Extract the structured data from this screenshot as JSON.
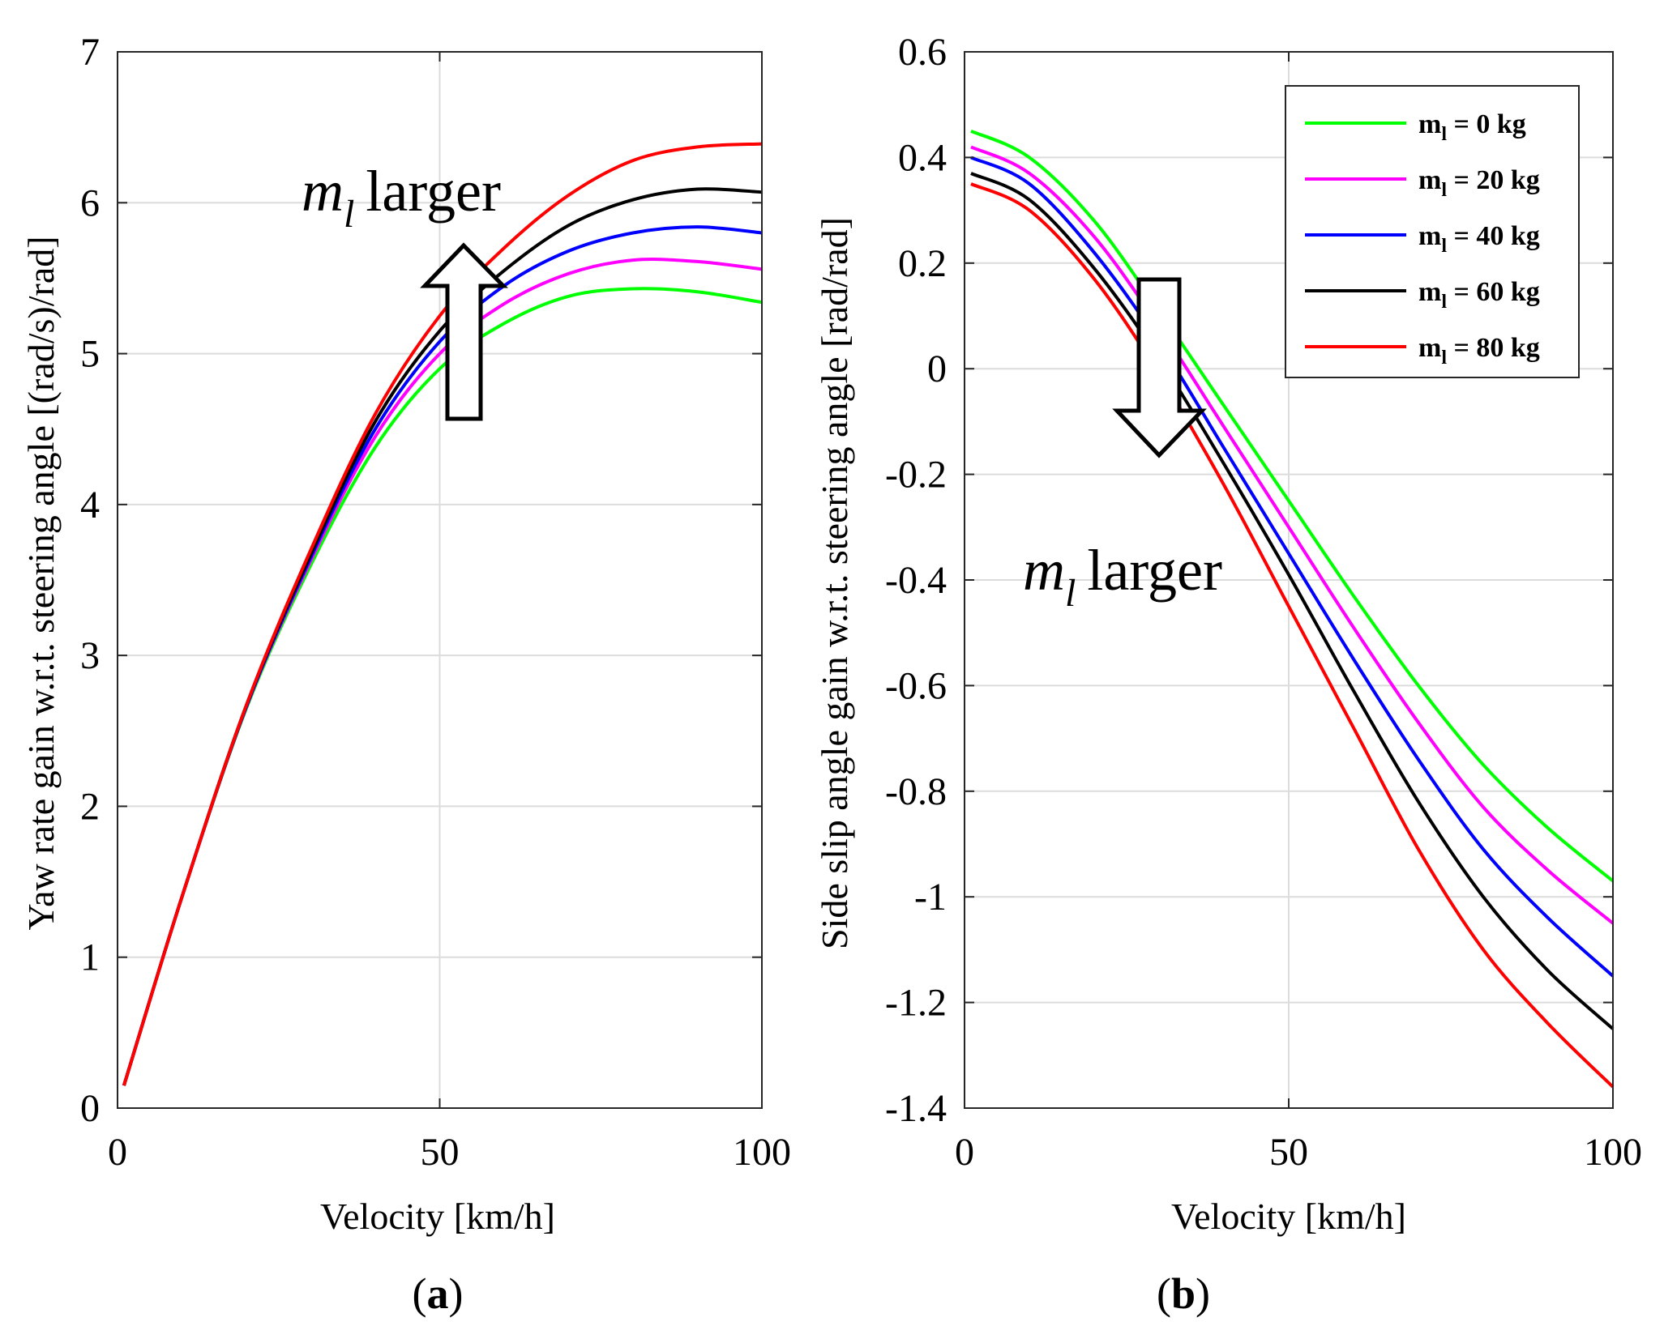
{
  "figure": {
    "panel_a_label": "a",
    "panel_b_label": "b"
  },
  "colors": {
    "m_0": "#00ff00",
    "m_20": "#ff00ff",
    "m_40": "#0000ff",
    "m_60": "#000000",
    "m_80": "#ff0000",
    "grid": "#dcdcdc",
    "axis": "#262626"
  },
  "chart_data": [
    {
      "type": "line",
      "panel": "a",
      "xlabel": "Velocity [km/h]",
      "ylabel": "Yaw rate gain w.r.t. steering angle [(rad/s)/rad]",
      "xlim": [
        0,
        100
      ],
      "ylim": [
        0,
        7
      ],
      "xticks": [
        0,
        50,
        100
      ],
      "yticks": [
        0,
        1,
        2,
        3,
        4,
        5,
        6,
        7
      ],
      "grid": true,
      "annotation": {
        "symbol": "m",
        "subscript": "l",
        "text": "larger",
        "arrow": "up"
      },
      "x": [
        1,
        10,
        20,
        30,
        40,
        50,
        60,
        70,
        80,
        90,
        100
      ],
      "series": [
        {
          "name": "m_l = 0 kg",
          "color_key": "m_0",
          "values": [
            0.15,
            1.4,
            2.65,
            3.6,
            4.38,
            4.9,
            5.2,
            5.38,
            5.43,
            5.41,
            5.34
          ]
        },
        {
          "name": "m_l = 20 kg",
          "color_key": "m_20",
          "values": [
            0.15,
            1.4,
            2.66,
            3.63,
            4.45,
            5.0,
            5.33,
            5.53,
            5.62,
            5.61,
            5.56
          ]
        },
        {
          "name": "m_l = 40 kg",
          "color_key": "m_40",
          "values": [
            0.15,
            1.4,
            2.66,
            3.65,
            4.5,
            5.08,
            5.45,
            5.68,
            5.8,
            5.84,
            5.8
          ]
        },
        {
          "name": "m_l = 60 kg",
          "color_key": "m_60",
          "values": [
            0.15,
            1.4,
            2.67,
            3.67,
            4.55,
            5.15,
            5.55,
            5.85,
            6.02,
            6.09,
            6.07
          ]
        },
        {
          "name": "m_l = 80 kg",
          "color_key": "m_80",
          "values": [
            0.15,
            1.4,
            2.67,
            3.7,
            4.6,
            5.25,
            5.7,
            6.05,
            6.28,
            6.37,
            6.39
          ]
        }
      ]
    },
    {
      "type": "line",
      "panel": "b",
      "xlabel": "Velocity [km/h]",
      "ylabel": "Side slip angle gain w.r.t. steering angle [rad/rad]",
      "xlim": [
        0,
        100
      ],
      "ylim": [
        -1.4,
        0.6
      ],
      "xticks": [
        0,
        50,
        100
      ],
      "yticks": [
        0.6,
        0.4,
        0.2,
        0,
        -0.2,
        -0.4,
        -0.6,
        -0.8,
        -1,
        -1.2,
        -1.4
      ],
      "ytick_labels": [
        "0.6",
        "0.4",
        "0.2",
        "0",
        "-0.2",
        "-0.4",
        "-0.6",
        "-0.8",
        "-1",
        "-1.2",
        "-1.4"
      ],
      "grid": true,
      "legend_position": "top-right",
      "legend": [
        "m_l = 0 kg",
        "m_l = 20 kg",
        "m_l = 40 kg",
        "m_l = 60 kg",
        "m_l = 80 kg"
      ],
      "annotation": {
        "symbol": "m",
        "subscript": "l",
        "text": "larger",
        "arrow": "down"
      },
      "x": [
        1,
        10,
        20,
        30,
        40,
        50,
        60,
        70,
        80,
        90,
        100
      ],
      "series": [
        {
          "name": "m_l = 0 kg",
          "color_key": "m_0",
          "values": [
            0.45,
            0.4,
            0.28,
            0.11,
            -0.07,
            -0.25,
            -0.43,
            -0.6,
            -0.75,
            -0.87,
            -0.97
          ]
        },
        {
          "name": "m_l = 20 kg",
          "color_key": "m_20",
          "values": [
            0.42,
            0.37,
            0.25,
            0.08,
            -0.11,
            -0.3,
            -0.49,
            -0.67,
            -0.83,
            -0.95,
            -1.05
          ]
        },
        {
          "name": "m_l = 40 kg",
          "color_key": "m_40",
          "values": [
            0.4,
            0.35,
            0.22,
            0.05,
            -0.15,
            -0.35,
            -0.55,
            -0.74,
            -0.91,
            -1.04,
            -1.15
          ]
        },
        {
          "name": "m_l = 60 kg",
          "color_key": "m_60",
          "values": [
            0.37,
            0.32,
            0.19,
            0.02,
            -0.18,
            -0.39,
            -0.61,
            -0.82,
            -1.0,
            -1.14,
            -1.25
          ]
        },
        {
          "name": "m_l = 80 kg",
          "color_key": "m_80",
          "values": [
            0.35,
            0.3,
            0.17,
            -0.01,
            -0.22,
            -0.45,
            -0.68,
            -0.91,
            -1.1,
            -1.24,
            -1.36
          ]
        }
      ]
    }
  ]
}
